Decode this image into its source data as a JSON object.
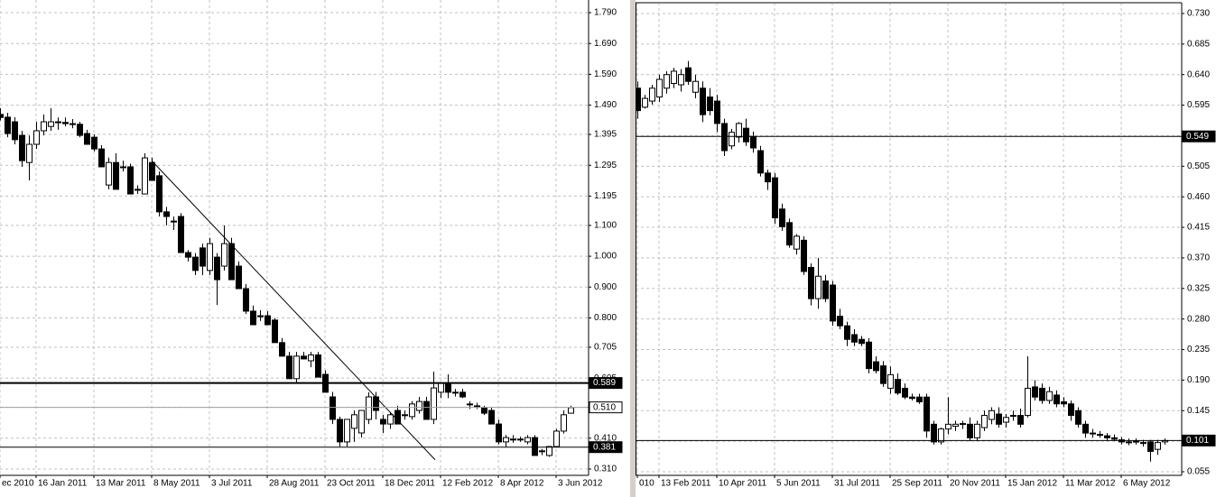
{
  "chart_data": [
    {
      "type": "candlestick",
      "categories": [
        "ec 2010",
        null,
        null,
        null,
        null,
        "16 Jan 2011",
        null,
        null,
        null,
        null,
        null,
        null,
        null,
        "13 Mar 2011",
        null,
        null,
        null,
        null,
        null,
        null,
        null,
        "8 May 2011",
        null,
        null,
        null,
        null,
        null,
        null,
        null,
        "3 Jul 2011",
        null,
        null,
        null,
        null,
        null,
        null,
        null,
        "28 Aug 2011",
        null,
        null,
        null,
        null,
        null,
        null,
        null,
        "23 Oct 2011",
        null,
        null,
        null,
        null,
        null,
        null,
        null,
        "18 Dec 2011",
        null,
        null,
        null,
        null,
        null,
        null,
        null,
        "12 Feb 2012",
        null,
        null,
        null,
        null,
        null,
        null,
        null,
        "8 Apr 2012",
        null,
        null,
        null,
        null,
        null,
        null,
        null,
        "3 Jun 2012",
        null,
        null
      ],
      "ohlc": [
        [
          1.46,
          1.48,
          1.44,
          1.45
        ],
        [
          1.451,
          1.465,
          1.386,
          1.398
        ],
        [
          1.436,
          1.451,
          1.363,
          1.378
        ],
        [
          1.392,
          1.407,
          1.29,
          1.31
        ],
        [
          1.304,
          1.392,
          1.246,
          1.363
        ],
        [
          1.363,
          1.436,
          1.348,
          1.407
        ],
        [
          1.407,
          1.46,
          1.392,
          1.436
        ],
        [
          1.421,
          1.48,
          1.407,
          1.436
        ],
        [
          1.436,
          1.45,
          1.41,
          1.434
        ],
        [
          1.434,
          1.45,
          1.421,
          1.43
        ],
        [
          1.43,
          1.445,
          1.415,
          1.428
        ],
        [
          1.428,
          1.436,
          1.386,
          1.392
        ],
        [
          1.398,
          1.41,
          1.363,
          1.363
        ],
        [
          1.386,
          1.395,
          1.34,
          1.348
        ],
        [
          1.348,
          1.36,
          1.29,
          1.29
        ],
        [
          1.231,
          1.32,
          1.217,
          1.304
        ],
        [
          1.304,
          1.334,
          1.217,
          1.217
        ],
        [
          1.29,
          1.31,
          1.275,
          1.29
        ],
        [
          1.29,
          1.3,
          1.202,
          1.202
        ],
        [
          1.217,
          1.23,
          1.202,
          1.217
        ],
        [
          1.202,
          1.334,
          1.202,
          1.319
        ],
        [
          1.304,
          1.32,
          1.246,
          1.246
        ],
        [
          1.261,
          1.275,
          1.129,
          1.144
        ],
        [
          1.144,
          1.16,
          1.1,
          1.129
        ],
        [
          1.114,
          1.129,
          1.085,
          1.114
        ],
        [
          1.129,
          1.14,
          1.012,
          1.012
        ],
        [
          1.012,
          1.02,
          0.983,
          0.997
        ],
        [
          0.997,
          1.01,
          0.939,
          0.954
        ],
        [
          1.027,
          1.041,
          0.939,
          0.968
        ],
        [
          0.954,
          1.06,
          0.939,
          1.041
        ],
        [
          0.997,
          1.01,
          0.842,
          0.924
        ],
        [
          0.968,
          1.1,
          0.954,
          1.041
        ],
        [
          1.041,
          1.06,
          0.924,
          0.924
        ],
        [
          0.968,
          0.983,
          0.895,
          0.895
        ],
        [
          0.895,
          0.91,
          0.813,
          0.822
        ],
        [
          0.822,
          0.84,
          0.778,
          0.778
        ],
        [
          0.807,
          0.825,
          0.79,
          0.807
        ],
        [
          0.807,
          0.822,
          0.778,
          0.778
        ],
        [
          0.793,
          0.8,
          0.72,
          0.72
        ],
        [
          0.72,
          0.735,
          0.676,
          0.676
        ],
        [
          0.676,
          0.69,
          0.603,
          0.603
        ],
        [
          0.603,
          0.69,
          0.59,
          0.676
        ],
        [
          0.676,
          0.69,
          0.667,
          0.667
        ],
        [
          0.661,
          0.69,
          0.64,
          0.68
        ],
        [
          0.68,
          0.69,
          0.608,
          0.608
        ],
        [
          0.617,
          0.63,
          0.559,
          0.559
        ],
        [
          0.544,
          0.56,
          0.456,
          0.471
        ],
        [
          0.471,
          0.48,
          0.383,
          0.398
        ],
        [
          0.398,
          0.471,
          0.383,
          0.471
        ],
        [
          0.442,
          0.5,
          0.398,
          0.486
        ],
        [
          0.427,
          0.5,
          0.412,
          0.5
        ],
        [
          0.471,
          0.559,
          0.456,
          0.544
        ],
        [
          0.544,
          0.56,
          0.471,
          0.5
        ],
        [
          0.471,
          0.486,
          0.427,
          0.456
        ],
        [
          0.456,
          0.495,
          0.44,
          0.486
        ],
        [
          0.5,
          0.515,
          0.456,
          0.456
        ],
        [
          0.486,
          0.5,
          0.47,
          0.486
        ],
        [
          0.48,
          0.53,
          0.47,
          0.521
        ],
        [
          0.5,
          0.544,
          0.49,
          0.529
        ],
        [
          0.529,
          0.544,
          0.471,
          0.471
        ],
        [
          0.471,
          0.626,
          0.456,
          0.573
        ],
        [
          0.559,
          0.59,
          0.54,
          0.588
        ],
        [
          0.588,
          0.617,
          0.54,
          0.559
        ],
        [
          0.559,
          0.57,
          0.545,
          0.559
        ],
        [
          0.559,
          0.57,
          0.54,
          0.544
        ],
        [
          0.521,
          0.53,
          0.505,
          0.521
        ],
        [
          0.515,
          0.525,
          0.505,
          0.515
        ],
        [
          0.509,
          0.515,
          0.485,
          0.491
        ],
        [
          0.5,
          0.51,
          0.456,
          0.456
        ],
        [
          0.456,
          0.47,
          0.39,
          0.398
        ],
        [
          0.398,
          0.42,
          0.38,
          0.412
        ],
        [
          0.407,
          0.42,
          0.395,
          0.407
        ],
        [
          0.407,
          0.415,
          0.398,
          0.407
        ],
        [
          0.398,
          0.42,
          0.39,
          0.412
        ],
        [
          0.412,
          0.42,
          0.354,
          0.354
        ],
        [
          0.369,
          0.375,
          0.355,
          0.369
        ],
        [
          0.354,
          0.38,
          0.35,
          0.383
        ],
        [
          0.383,
          0.44,
          0.38,
          0.433
        ],
        [
          0.433,
          0.5,
          0.425,
          0.486
        ],
        [
          0.491,
          0.515,
          0.49,
          0.509
        ]
      ],
      "ylim": [
        0.2895,
        1.831
      ],
      "yticks": [
        {
          "value": 1.79,
          "label": "1.790"
        },
        {
          "value": 1.69,
          "label": "1.690"
        },
        {
          "value": 1.59,
          "label": "1.590"
        },
        {
          "value": 1.49,
          "label": "1.490"
        },
        {
          "value": 1.395,
          "label": "1.395"
        },
        {
          "value": 1.295,
          "label": "1.295"
        },
        {
          "value": 1.195,
          "label": "1.195"
        },
        {
          "value": 1.1,
          "label": "1.100"
        },
        {
          "value": 1.0,
          "label": "1.000"
        },
        {
          "value": 0.9,
          "label": "0.900"
        },
        {
          "value": 0.8,
          "label": "0.800"
        },
        {
          "value": 0.705,
          "label": "0.705"
        },
        {
          "value": 0.605,
          "label": "0.605"
        },
        {
          "value": 0.51,
          "label": "0.510"
        },
        {
          "value": 0.41,
          "label": "0.410"
        },
        {
          "value": 0.31,
          "label": "0.310"
        }
      ],
      "levels": [
        {
          "value": 0.589,
          "label": "0.589",
          "color": "#000000",
          "bold": true,
          "box": "#000000"
        },
        {
          "value": 0.51,
          "label": "0.510",
          "color": "#a0a0a0",
          "bold": false,
          "box": "#ffffff"
        },
        {
          "value": 0.381,
          "label": "0.381",
          "color": "#000000",
          "bold": false,
          "box": "#000000"
        }
      ],
      "trendline": {
        "x": [
          21,
          60.25
        ],
        "y": [
          1.31,
          0.34
        ]
      },
      "grid": true,
      "up_color": "#ffffff",
      "down_color": "#000000"
    },
    {
      "type": "candlestick",
      "categories": [
        "010",
        null,
        null,
        "13 Feb 2011",
        null,
        null,
        null,
        null,
        null,
        null,
        null,
        "10 Apr 2011",
        null,
        null,
        null,
        null,
        null,
        null,
        null,
        "5 Jun 2011",
        null,
        null,
        null,
        null,
        null,
        null,
        null,
        "31 Jul 2011",
        null,
        null,
        null,
        null,
        null,
        null,
        null,
        "25 Sep 2011",
        null,
        null,
        null,
        null,
        null,
        null,
        null,
        "20 Nov 2011",
        null,
        null,
        null,
        null,
        null,
        null,
        null,
        "15 Jan 2012",
        null,
        null,
        null,
        null,
        null,
        null,
        null,
        "11 Mar 2012",
        null,
        null,
        null,
        null,
        null,
        null,
        null,
        "6 May 2012",
        null,
        null,
        null,
        null,
        null,
        null
      ],
      "ohlc": [
        [
          0.62,
          0.63,
          0.575,
          0.587
        ],
        [
          0.592,
          0.61,
          0.59,
          0.605
        ],
        [
          0.601,
          0.625,
          0.596,
          0.62
        ],
        [
          0.607,
          0.64,
          0.6,
          0.633
        ],
        [
          0.62,
          0.645,
          0.612,
          0.64
        ],
        [
          0.627,
          0.65,
          0.62,
          0.645
        ],
        [
          0.625,
          0.648,
          0.615,
          0.64
        ],
        [
          0.65,
          0.66,
          0.625,
          0.63
        ],
        [
          0.614,
          0.64,
          0.605,
          0.63
        ],
        [
          0.62,
          0.63,
          0.57,
          0.581
        ],
        [
          0.607,
          0.62,
          0.58,
          0.587
        ],
        [
          0.601,
          0.61,
          0.555,
          0.568
        ],
        [
          0.568,
          0.575,
          0.52,
          0.528
        ],
        [
          0.535,
          0.56,
          0.53,
          0.555
        ],
        [
          0.548,
          0.57,
          0.54,
          0.568
        ],
        [
          0.561,
          0.575,
          0.535,
          0.541
        ],
        [
          0.548,
          0.556,
          0.525,
          0.532
        ],
        [
          0.528,
          0.535,
          0.49,
          0.495
        ],
        [
          0.495,
          0.5,
          0.47,
          0.482
        ],
        [
          0.488,
          0.495,
          0.42,
          0.429
        ],
        [
          0.442,
          0.45,
          0.41,
          0.416
        ],
        [
          0.422,
          0.428,
          0.385,
          0.389
        ],
        [
          0.383,
          0.405,
          0.375,
          0.402
        ],
        [
          0.396,
          0.402,
          0.345,
          0.35
        ],
        [
          0.356,
          0.362,
          0.3,
          0.31
        ],
        [
          0.31,
          0.37,
          0.295,
          0.343
        ],
        [
          0.336,
          0.345,
          0.305,
          0.31
        ],
        [
          0.33,
          0.336,
          0.27,
          0.277
        ],
        [
          0.284,
          0.295,
          0.265,
          0.27
        ],
        [
          0.27,
          0.276,
          0.24,
          0.25
        ],
        [
          0.257,
          0.265,
          0.24,
          0.246
        ],
        [
          0.25,
          0.255,
          0.24,
          0.244
        ],
        [
          0.246,
          0.252,
          0.2,
          0.207
        ],
        [
          0.217,
          0.225,
          0.2,
          0.204
        ],
        [
          0.211,
          0.218,
          0.18,
          0.185
        ],
        [
          0.178,
          0.21,
          0.17,
          0.198
        ],
        [
          0.191,
          0.2,
          0.168,
          0.171
        ],
        [
          0.178,
          0.185,
          0.162,
          0.165
        ],
        [
          0.165,
          0.17,
          0.16,
          0.163
        ],
        [
          0.165,
          0.17,
          0.155,
          0.158
        ],
        [
          0.165,
          0.17,
          0.105,
          0.115
        ],
        [
          0.125,
          0.13,
          0.095,
          0.099
        ],
        [
          0.099,
          0.12,
          0.095,
          0.118
        ],
        [
          0.118,
          0.165,
          0.11,
          0.125
        ],
        [
          0.122,
          0.13,
          0.115,
          0.125
        ],
        [
          0.125,
          0.13,
          0.118,
          0.126
        ],
        [
          0.125,
          0.135,
          0.1,
          0.105
        ],
        [
          0.105,
          0.13,
          0.1,
          0.125
        ],
        [
          0.12,
          0.145,
          0.115,
          0.138
        ],
        [
          0.132,
          0.15,
          0.125,
          0.145
        ],
        [
          0.14,
          0.15,
          0.12,
          0.125
        ],
        [
          0.128,
          0.14,
          0.12,
          0.135
        ],
        [
          0.138,
          0.145,
          0.13,
          0.138
        ],
        [
          0.138,
          0.148,
          0.12,
          0.125
        ],
        [
          0.138,
          0.225,
          0.135,
          0.178
        ],
        [
          0.18,
          0.19,
          0.16,
          0.165
        ],
        [
          0.178,
          0.185,
          0.155,
          0.16
        ],
        [
          0.16,
          0.18,
          0.155,
          0.173
        ],
        [
          0.168,
          0.175,
          0.15,
          0.155
        ],
        [
          0.158,
          0.165,
          0.15,
          0.155
        ],
        [
          0.155,
          0.16,
          0.13,
          0.138
        ],
        [
          0.145,
          0.15,
          0.12,
          0.125
        ],
        [
          0.125,
          0.13,
          0.105,
          0.112
        ],
        [
          0.112,
          0.118,
          0.105,
          0.112
        ],
        [
          0.11,
          0.115,
          0.105,
          0.109
        ],
        [
          0.108,
          0.112,
          0.1,
          0.105
        ],
        [
          0.105,
          0.11,
          0.1,
          0.103
        ],
        [
          0.102,
          0.106,
          0.095,
          0.099
        ],
        [
          0.099,
          0.104,
          0.094,
          0.098
        ],
        [
          0.1,
          0.104,
          0.095,
          0.099
        ],
        [
          0.098,
          0.102,
          0.092,
          0.097
        ],
        [
          0.099,
          0.102,
          0.07,
          0.085
        ],
        [
          0.088,
          0.102,
          0.08,
          0.098
        ],
        [
          0.099,
          0.104,
          0.095,
          0.101
        ]
      ],
      "ylim": [
        0.0497,
        0.7459
      ],
      "yticks": [
        {
          "value": 0.73,
          "label": "0.730"
        },
        0.685,
        {
          "value": 0.64,
          "label": "0.640"
        },
        0.595,
        {
          "value": 0.55,
          "label": "0.550"
        },
        0.505,
        {
          "value": 0.46,
          "label": "0.460"
        },
        0.415,
        {
          "value": 0.37,
          "label": "0.370"
        },
        0.325,
        {
          "value": 0.28,
          "label": "0.280"
        },
        0.235,
        {
          "value": 0.19,
          "label": "0.190"
        },
        0.145,
        {
          "value": 0.1,
          "label": "0.100"
        },
        0.055
      ],
      "levels": [
        {
          "value": 0.549,
          "label": "0.549",
          "color": "#000000",
          "bold": false,
          "box": "#000000"
        },
        {
          "value": 0.101,
          "label": "0.101",
          "color": "#000000",
          "bold": false,
          "box": "#000000"
        }
      ],
      "grid": true,
      "up_color": "#ffffff",
      "down_color": "#000000"
    }
  ]
}
